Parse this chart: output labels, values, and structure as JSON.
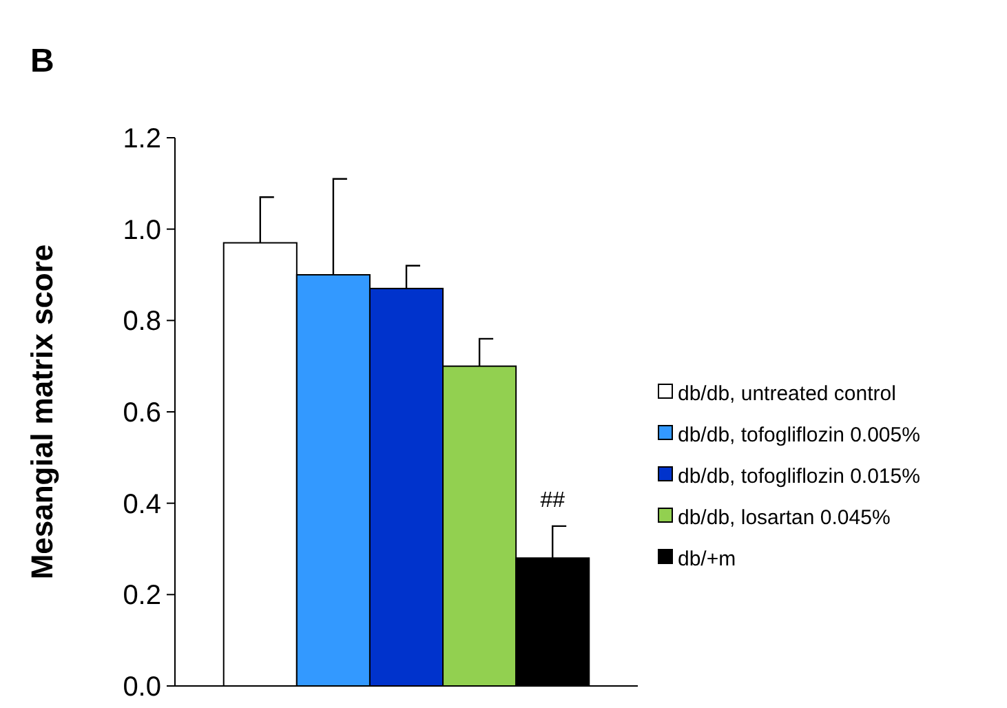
{
  "chart_data": {
    "type": "bar",
    "title": "B",
    "ylabel": "Mesangial matrix score",
    "categories": [
      null
    ],
    "series": [
      {
        "name": "db/db, untreated control",
        "color": "#ffffff",
        "values": [
          0.97
        ],
        "errors": [
          [
            0.97,
            1.07
          ]
        ]
      },
      {
        "name": "db/db, tofogliflozin 0.005%",
        "color": "#3399ff",
        "values": [
          0.9
        ],
        "errors": [
          [
            0.9,
            1.11
          ]
        ]
      },
      {
        "name": "db/db, tofogliflozin 0.015%",
        "color": "#0033cc",
        "values": [
          0.87
        ],
        "errors": [
          [
            0.87,
            0.92
          ]
        ]
      },
      {
        "name": "db/db, losartan 0.045%",
        "color": "#92d050",
        "values": [
          0.7
        ],
        "errors": [
          [
            0.7,
            0.76
          ]
        ]
      },
      {
        "name": "db/+m",
        "color": "#000000",
        "values": [
          0.28
        ],
        "errors": [
          [
            0.28,
            0.35
          ]
        ]
      }
    ],
    "ylim": [
      0,
      1.2
    ],
    "yticks": [
      {
        "value": 0,
        "label": "0.0"
      },
      {
        "value": 0.2,
        "label": "0.2"
      },
      {
        "value": 0.4,
        "label": "0.4"
      },
      {
        "value": 0.6,
        "label": "0.6"
      },
      {
        "value": 0.8,
        "label": "0.8"
      },
      {
        "value": 1,
        "label": "1.0"
      },
      {
        "value": 1.2,
        "label": "1.2"
      }
    ],
    "annotations": [
      "##"
    ],
    "legend": "right",
    "grid": false
  }
}
